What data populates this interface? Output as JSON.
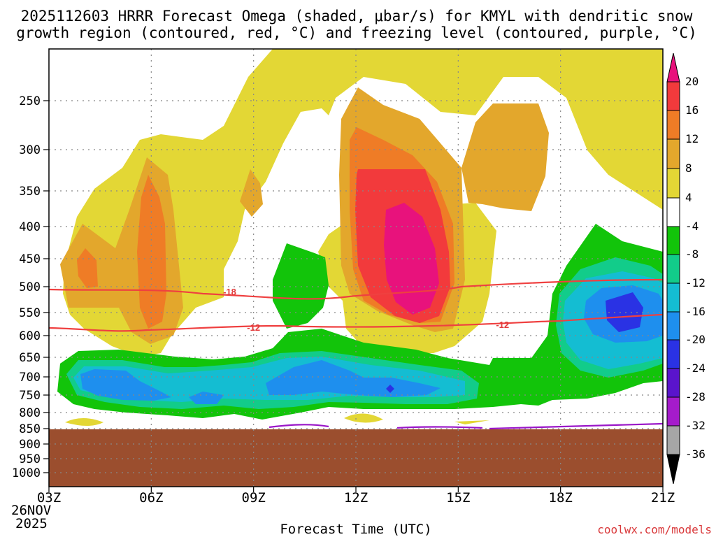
{
  "chart_data": {
    "type": "heatmap",
    "title_line1": "2025112603 HRRR Forecast Omega (shaded, μbar/s) for KMYL with dendritic snow",
    "title_line2": "growth region (contoured, red, °C) and freezing level (contoured, purple, °C)",
    "xlabel": "Forecast Time (UTC)",
    "ylabel": "",
    "x_ticks": [
      "03Z",
      "06Z",
      "09Z",
      "12Z",
      "15Z",
      "18Z",
      "21Z"
    ],
    "x_hours": [
      3,
      6,
      9,
      12,
      15,
      18,
      21
    ],
    "date_day": "26NOV",
    "date_year": "2025",
    "y_ticks": [
      "250",
      "300",
      "350",
      "400",
      "450",
      "500",
      "550",
      "600",
      "650",
      "700",
      "750",
      "800",
      "850",
      "900",
      "950",
      "1000"
    ],
    "y_pressure": [
      250,
      300,
      350,
      400,
      450,
      500,
      550,
      600,
      650,
      700,
      750,
      800,
      850,
      900,
      950,
      1000
    ],
    "xlim": [
      3,
      21
    ],
    "ylim_hpa": [
      200,
      1050
    ],
    "colorbar_labels": [
      "20",
      "16",
      "12",
      "8",
      "4",
      "-4",
      "-8",
      "-12",
      "-16",
      "-20",
      "-24",
      "-28",
      "-32",
      "-36"
    ],
    "colorbar_colors": [
      "#e8127c",
      "#f23a3c",
      "#ef7c26",
      "#e3a72c",
      "#e3d735",
      "#ffffff",
      "#12c40a",
      "#12cc8a",
      "#14bdd2",
      "#1e8fee",
      "#2a32e4",
      "#5a14cc",
      "#a51bcb",
      "#a6a6a6",
      "#000000"
    ],
    "contour_labels": [
      {
        "value": -18,
        "text": "-18",
        "hour": 8.3
      },
      {
        "value": -12,
        "text": "-12",
        "hour": 9.0
      },
      {
        "value": -12,
        "text": "-12",
        "hour": 16.3
      }
    ],
    "ground_color": "#9b4e2e",
    "credit": "coolwx.com/models"
  }
}
